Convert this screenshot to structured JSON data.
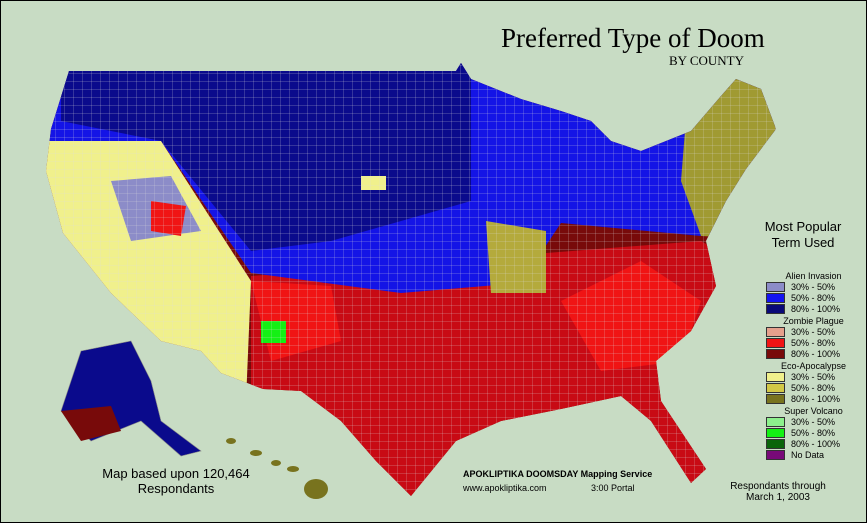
{
  "header": {
    "title": "Preferred Type of Doom",
    "subtitle": "BY COUNTY"
  },
  "legend": {
    "title": "Most Popular Term Used",
    "groups": [
      {
        "name": "Alien Invasion",
        "items": [
          {
            "label": "30% - 50%",
            "color": "#8c8cc8"
          },
          {
            "label": "50% - 80%",
            "color": "#1414f0"
          },
          {
            "label": "80% - 100%",
            "color": "#0a0a78"
          }
        ]
      },
      {
        "name": "Zombie Plague",
        "items": [
          {
            "label": "30% - 50%",
            "color": "#e6a08c"
          },
          {
            "label": "50% - 80%",
            "color": "#f01414"
          },
          {
            "label": "80% - 100%",
            "color": "#780a0a"
          }
        ]
      },
      {
        "name": "Eco-Apocalypse",
        "items": [
          {
            "label": "30% - 50%",
            "color": "#f0f08c"
          },
          {
            "label": "50% - 80%",
            "color": "#d2c846"
          },
          {
            "label": "80% - 100%",
            "color": "#78731e"
          }
        ]
      },
      {
        "name": "Super Volcano",
        "items": [
          {
            "label": "30% - 50%",
            "color": "#8cf08c"
          },
          {
            "label": "50% - 80%",
            "color": "#14f014"
          },
          {
            "label": "80% - 100%",
            "color": "#0a640a"
          }
        ]
      }
    ],
    "no_data": {
      "label": "No Data",
      "color": "#780a78"
    }
  },
  "notes": {
    "sample": "Map based upon 120,464 Respondants",
    "service": "APOKLIPTIKA DOOMSDAY Mapping Service",
    "url": "www.apokliptika.com",
    "portal": "3:00 Portal",
    "date": "Respondants through March 1, 2003"
  }
}
